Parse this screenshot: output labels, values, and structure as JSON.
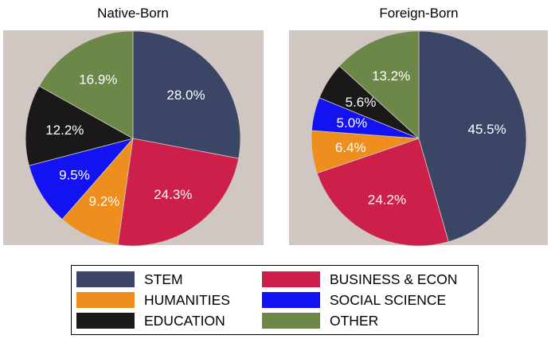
{
  "chart_data": [
    {
      "type": "pie",
      "title": "Native-Born",
      "slices": [
        {
          "label": "STEM",
          "value": 28.0,
          "text": "28.0%"
        },
        {
          "label": "BUSINESS & ECON",
          "value": 24.3,
          "text": "24.3%"
        },
        {
          "label": "HUMANITIES",
          "value": 9.2,
          "text": "9.2%"
        },
        {
          "label": "SOCIAL SCIENCE",
          "value": 9.5,
          "text": "9.5%"
        },
        {
          "label": "EDUCATION",
          "value": 12.2,
          "text": "12.2%"
        },
        {
          "label": "OTHER",
          "value": 16.9,
          "text": "16.9%"
        }
      ]
    },
    {
      "type": "pie",
      "title": "Foreign-Born",
      "slices": [
        {
          "label": "STEM",
          "value": 45.5,
          "text": "45.5%"
        },
        {
          "label": "BUSINESS & ECON",
          "value": 24.2,
          "text": "24.2%"
        },
        {
          "label": "HUMANITIES",
          "value": 6.4,
          "text": "6.4%"
        },
        {
          "label": "SOCIAL SCIENCE",
          "value": 5.0,
          "text": "5.0%"
        },
        {
          "label": "EDUCATION",
          "value": 5.6,
          "text": "5.6%"
        },
        {
          "label": "OTHER",
          "value": 13.2,
          "text": "13.2%"
        }
      ]
    }
  ],
  "colors": {
    "STEM": "#3b4566",
    "BUSINESS & ECON": "#cc1f4a",
    "HUMANITIES": "#ee8e1e",
    "SOCIAL SCIENCE": "#1212f2",
    "EDUCATION": "#1a1818",
    "OTHER": "#6c8849",
    "panel_bg": "#d0c6c2"
  },
  "legend": {
    "items": [
      {
        "label": "STEM"
      },
      {
        "label": "BUSINESS & ECON"
      },
      {
        "label": "HUMANITIES"
      },
      {
        "label": "SOCIAL SCIENCE"
      },
      {
        "label": "EDUCATION"
      },
      {
        "label": "OTHER"
      }
    ]
  }
}
